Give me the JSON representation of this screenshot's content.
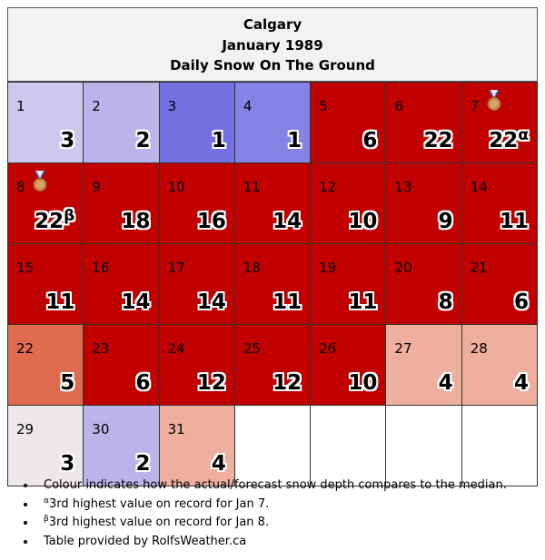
{
  "header": {
    "city": "Calgary",
    "month": "January 1989",
    "subtitle": "Daily Snow On The Ground"
  },
  "weeks": [
    [
      {
        "day": "1",
        "value": "3",
        "color": "#cdc8ee"
      },
      {
        "day": "2",
        "value": "2",
        "color": "#bab4ea"
      },
      {
        "day": "3",
        "value": "1",
        "color": "#7371e2"
      },
      {
        "day": "4",
        "value": "1",
        "color": "#8583e6"
      },
      {
        "day": "5",
        "value": "6",
        "color": "#c10000"
      },
      {
        "day": "6",
        "value": "22",
        "color": "#c10000"
      },
      {
        "day": "7",
        "value": "22",
        "mark": "α",
        "medal": true,
        "color": "#c10000"
      }
    ],
    [
      {
        "day": "8",
        "value": "22",
        "mark": "β",
        "medal": true,
        "color": "#c10000"
      },
      {
        "day": "9",
        "value": "18",
        "color": "#c10000"
      },
      {
        "day": "10",
        "value": "16",
        "color": "#c10000"
      },
      {
        "day": "11",
        "value": "14",
        "color": "#c10000"
      },
      {
        "day": "12",
        "value": "10",
        "color": "#c10000"
      },
      {
        "day": "13",
        "value": "9",
        "color": "#c10000"
      },
      {
        "day": "14",
        "value": "11",
        "color": "#c10000"
      }
    ],
    [
      {
        "day": "15",
        "value": "11",
        "color": "#c10000"
      },
      {
        "day": "16",
        "value": "14",
        "color": "#c10000"
      },
      {
        "day": "17",
        "value": "14",
        "color": "#c10000"
      },
      {
        "day": "18",
        "value": "11",
        "color": "#c10000"
      },
      {
        "day": "19",
        "value": "11",
        "color": "#c10000"
      },
      {
        "day": "20",
        "value": "8",
        "color": "#c10000"
      },
      {
        "day": "21",
        "value": "6",
        "color": "#c10000"
      }
    ],
    [
      {
        "day": "22",
        "value": "5",
        "color": "#e06b4f"
      },
      {
        "day": "23",
        "value": "6",
        "color": "#c10000"
      },
      {
        "day": "24",
        "value": "12",
        "color": "#c10000"
      },
      {
        "day": "25",
        "value": "12",
        "color": "#c10000"
      },
      {
        "day": "26",
        "value": "10",
        "color": "#c10000"
      },
      {
        "day": "27",
        "value": "4",
        "color": "#eeaf9f"
      },
      {
        "day": "28",
        "value": "4",
        "color": "#eeaf9f"
      }
    ],
    [
      {
        "day": "29",
        "value": "3",
        "color": "#ede7e9"
      },
      {
        "day": "30",
        "value": "2",
        "color": "#bab4ea"
      },
      {
        "day": "31",
        "value": "4",
        "color": "#eeaf9f"
      },
      {
        "day": "",
        "value": "",
        "color": "#ffffff"
      },
      {
        "day": "",
        "value": "",
        "color": "#ffffff"
      },
      {
        "day": "",
        "value": "",
        "color": "#ffffff"
      },
      {
        "day": "",
        "value": "",
        "color": "#ffffff"
      }
    ]
  ],
  "notes": {
    "colour": "Colour indicates how the actual/forecast snow depth compares to the median.",
    "alpha_mark": "α",
    "alpha_text": "3rd highest value on record for Jan 7.",
    "beta_mark": "β",
    "beta_text": "3rd highest value on record for Jan 8.",
    "source": "Table provided by RolfsWeather.ca"
  },
  "medal_icon": "bronze-medal-icon"
}
